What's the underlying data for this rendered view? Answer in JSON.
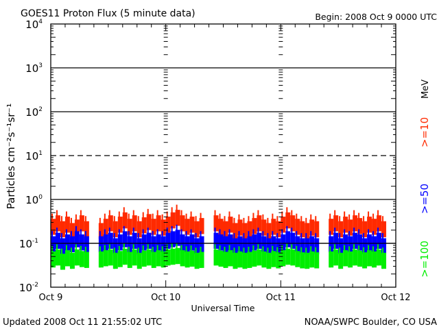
{
  "chart_data": {
    "type": "line",
    "title": "GOES11 Proton Flux (5 minute data)",
    "begin_label": "Begin: 2008 Oct 9 0000 UTC",
    "xlabel": "Universal Time",
    "ylabel": "Particles cm⁻²s⁻¹sr⁻¹",
    "yscale": "log",
    "ylim": [
      0.01,
      10000
    ],
    "y_ticks": [
      {
        "value": 10000,
        "base": "10",
        "exp": "4"
      },
      {
        "value": 1000,
        "base": "10",
        "exp": "3"
      },
      {
        "value": 100,
        "base": "10",
        "exp": "2"
      },
      {
        "value": 10,
        "base": "10",
        "exp": "1"
      },
      {
        "value": 1,
        "base": "10",
        "exp": "0"
      },
      {
        "value": 0.1,
        "base": "10",
        "exp": "-1"
      },
      {
        "value": 0.01,
        "base": "10",
        "exp": "-2"
      }
    ],
    "xlim_hours": [
      0,
      72
    ],
    "x_ticks": [
      {
        "hour": 0,
        "label": "Oct 9"
      },
      {
        "hour": 24,
        "label": "Oct 10"
      },
      {
        "hour": 48,
        "label": "Oct 11"
      },
      {
        "hour": 72,
        "label": "Oct 12"
      }
    ],
    "threshold_line": 10,
    "unit_label": "MeV",
    "x_hours": [
      0,
      1,
      2,
      3,
      4,
      5,
      6,
      7,
      8,
      9,
      10,
      11,
      12,
      13,
      14,
      15,
      16,
      17,
      18,
      19,
      20,
      21,
      22,
      23,
      24,
      25,
      26,
      27,
      28,
      29,
      30,
      31,
      32,
      33,
      34,
      35,
      36,
      37,
      38,
      39,
      40,
      41,
      42,
      43,
      44,
      45,
      46,
      47,
      48,
      49,
      50,
      51,
      52,
      53,
      54,
      55,
      56,
      57,
      58,
      59,
      60,
      61,
      62,
      63,
      64,
      65,
      66,
      67,
      68,
      69,
      70,
      71
    ],
    "series": [
      {
        "name": ">=10",
        "color": "#ff2a00",
        "values": [
          0.25,
          0.3,
          0.22,
          0.28,
          0.2,
          0.24,
          0.3,
          0.22,
          null,
          null,
          0.2,
          0.25,
          0.3,
          0.22,
          0.28,
          0.35,
          0.25,
          0.3,
          0.22,
          0.27,
          0.32,
          0.25,
          0.3,
          0.24,
          0.28,
          0.35,
          0.4,
          0.3,
          0.25,
          0.28,
          0.22,
          0.26,
          null,
          null,
          0.3,
          0.25,
          0.22,
          0.28,
          0.2,
          0.24,
          0.2,
          0.22,
          0.26,
          0.3,
          0.24,
          0.2,
          0.25,
          0.22,
          0.28,
          0.35,
          0.3,
          0.25,
          0.22,
          0.2,
          0.24,
          0.22,
          null,
          null,
          0.25,
          0.3,
          0.22,
          0.28,
          0.24,
          0.3,
          0.26,
          0.22,
          0.28,
          0.25,
          0.3,
          0.22,
          null,
          null
        ]
      },
      {
        "name": ">=50",
        "color": "#0000ff",
        "values": [
          0.1,
          0.12,
          0.09,
          0.11,
          0.1,
          0.13,
          0.11,
          0.1,
          null,
          null,
          0.1,
          0.11,
          0.12,
          0.09,
          0.11,
          0.13,
          0.1,
          0.12,
          0.09,
          0.11,
          0.12,
          0.1,
          0.11,
          0.1,
          0.12,
          0.13,
          0.14,
          0.11,
          0.1,
          0.11,
          0.09,
          0.1,
          null,
          null,
          0.12,
          0.11,
          0.1,
          0.11,
          0.09,
          0.1,
          0.09,
          0.1,
          0.11,
          0.12,
          0.1,
          0.09,
          0.1,
          0.09,
          0.11,
          0.13,
          0.12,
          0.1,
          0.09,
          0.09,
          0.1,
          0.09,
          null,
          null,
          0.1,
          0.12,
          0.09,
          0.11,
          0.1,
          0.12,
          0.11,
          0.09,
          0.11,
          0.1,
          0.12,
          0.09,
          null,
          null
        ]
      },
      {
        "name": ">=100",
        "color": "#00ee00",
        "values": [
          0.045,
          0.05,
          0.04,
          0.048,
          0.042,
          0.05,
          0.046,
          0.044,
          null,
          null,
          0.045,
          0.048,
          0.05,
          0.042,
          0.046,
          0.052,
          0.044,
          0.05,
          0.042,
          0.047,
          0.05,
          0.044,
          0.048,
          0.045,
          0.05,
          0.052,
          0.054,
          0.048,
          0.045,
          0.047,
          0.042,
          0.044,
          null,
          null,
          0.05,
          0.047,
          0.044,
          0.048,
          0.042,
          0.045,
          0.042,
          0.044,
          0.047,
          0.05,
          0.045,
          0.042,
          0.046,
          0.043,
          0.048,
          0.052,
          0.05,
          0.046,
          0.043,
          0.042,
          0.045,
          0.043,
          null,
          null,
          0.045,
          0.05,
          0.042,
          0.048,
          0.045,
          0.05,
          0.047,
          0.043,
          0.048,
          0.045,
          0.05,
          0.042,
          null,
          null
        ]
      }
    ]
  },
  "footer": {
    "updated": "Updated 2008 Oct 11 21:55:02 UTC",
    "source": "NOAA/SWPC Boulder, CO USA"
  }
}
